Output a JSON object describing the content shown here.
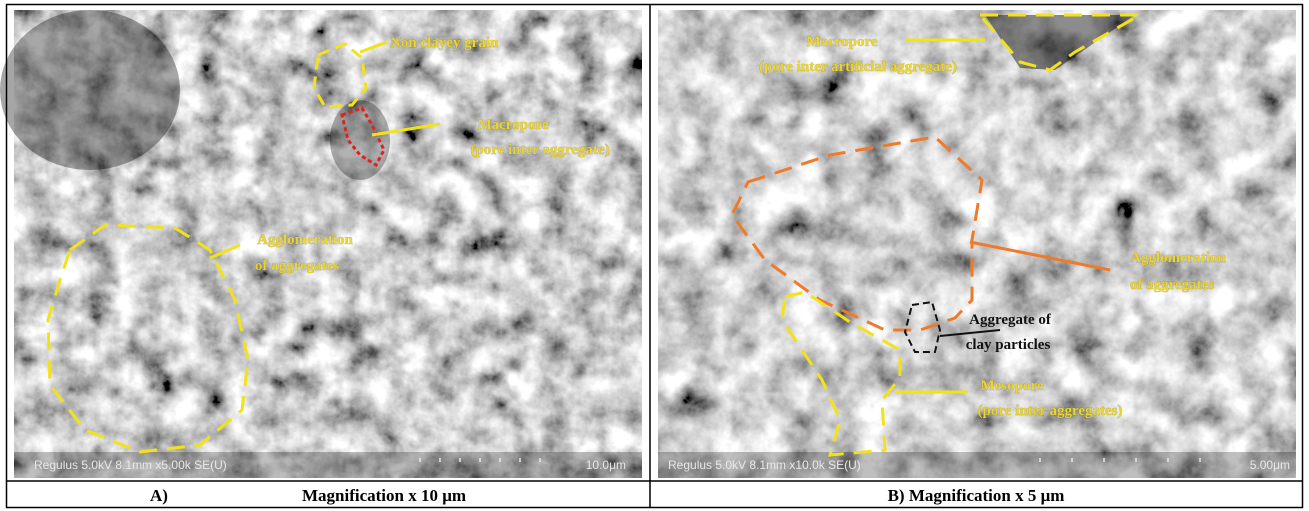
{
  "panels": [
    {
      "caption_label": "A)",
      "caption": "Magnification x 10 μm",
      "image": {
        "annotations": [
          {
            "lines": [
              "Non clayey grain"
            ]
          },
          {
            "lines": [
              "Macropore",
              "(pore inter aggregate)"
            ]
          },
          {
            "lines": [
              "Agglomeration",
              "of aggregates"
            ]
          }
        ],
        "info_bar": "Regulus 5.0kV 8.1mm x5.00k SE(U)",
        "scale_bar": "10.0μm"
      }
    },
    {
      "caption": "B) Magnification x 5 μm",
      "image": {
        "annotations": [
          {
            "lines": [
              "Macropore",
              "(pore inter artificial aggregate)"
            ]
          },
          {
            "lines": [
              "Agglomeration",
              "of aggregates"
            ]
          },
          {
            "lines": [
              "Aggregate of",
              "clay particles"
            ]
          },
          {
            "lines": [
              "Mesopore",
              "(pore inter aggregates)"
            ]
          }
        ],
        "info_bar": "Regulus 5.0kV 8.1mm x10.0k SE(U)",
        "scale_bar": "5.00μm"
      }
    }
  ]
}
